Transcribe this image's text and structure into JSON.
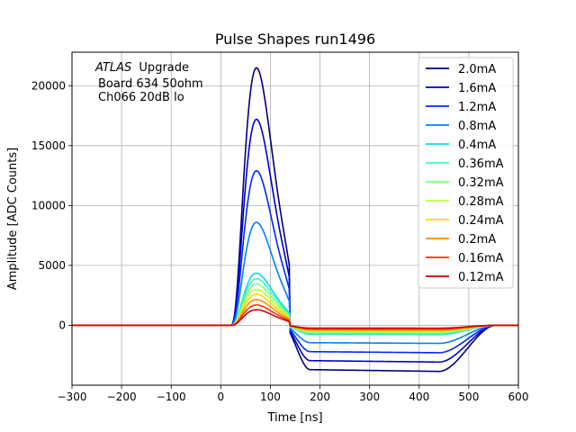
{
  "chart_data": {
    "type": "line",
    "title": "Pulse Shapes run1496",
    "xlabel": "Time [ns]",
    "ylabel": "Amplitude [ADC Counts]",
    "xlim": [
      -300,
      600
    ],
    "ylim": [
      -5000,
      22800
    ],
    "xticks": [
      -300,
      -200,
      -100,
      0,
      100,
      200,
      300,
      400,
      500,
      600
    ],
    "yticks": [
      0,
      5000,
      10000,
      15000,
      20000
    ],
    "grid": true,
    "legend_position": "top-right",
    "annotation": {
      "experiment": "ATLAS",
      "tag": "Upgrade",
      "line2": "Board 634 50ohm",
      "line3": "Ch066 20dB lo"
    },
    "series": [
      {
        "name": "2.0mA",
        "color": "#000080",
        "peak": 21500,
        "undershoot": -3700
      },
      {
        "name": "1.6mA",
        "color": "#0000cd",
        "peak": 17200,
        "undershoot": -2950
      },
      {
        "name": "1.2mA",
        "color": "#0028ff",
        "peak": 12900,
        "undershoot": -2200
      },
      {
        "name": "0.8mA",
        "color": "#0080ff",
        "peak": 8600,
        "undershoot": -1450
      },
      {
        "name": "0.4mA",
        "color": "#15d4e8",
        "peak": 4350,
        "undershoot": -750
      },
      {
        "name": "0.36mA",
        "color": "#38ffbd",
        "peak": 3900,
        "undershoot": -680
      },
      {
        "name": "0.32mA",
        "color": "#7bff7a",
        "peak": 3450,
        "undershoot": -600
      },
      {
        "name": "0.28mA",
        "color": "#bdff38",
        "peak": 3000,
        "undershoot": -520
      },
      {
        "name": "0.24mA",
        "color": "#ffd400",
        "peak": 2600,
        "undershoot": -450
      },
      {
        "name": "0.2mA",
        "color": "#ff8c00",
        "peak": 2150,
        "undershoot": -380
      },
      {
        "name": "0.16mA",
        "color": "#ff3000",
        "peak": 1700,
        "undershoot": -300
      },
      {
        "name": "0.12mA",
        "color": "#cd0000",
        "peak": 1300,
        "undershoot": -230
      }
    ]
  }
}
